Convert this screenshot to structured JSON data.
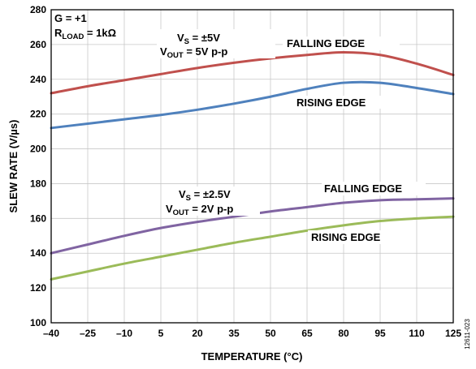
{
  "chart_data": {
    "type": "line",
    "xlabel": "TEMPERATURE (°C)",
    "ylabel": "SLEW RATE (V/µs)",
    "xlim": [
      -40,
      125
    ],
    "ylim": [
      100,
      280
    ],
    "x_ticks": [
      "–40",
      "–25",
      "–10",
      "5",
      "20",
      "35",
      "50",
      "65",
      "80",
      "95",
      "110",
      "125"
    ],
    "x_tick_values": [
      -40,
      -25,
      -10,
      5,
      20,
      35,
      50,
      65,
      80,
      95,
      110,
      125
    ],
    "y_ticks": [
      "100",
      "120",
      "140",
      "160",
      "180",
      "200",
      "220",
      "240",
      "260",
      "280"
    ],
    "y_tick_values": [
      100,
      120,
      140,
      160,
      180,
      200,
      220,
      240,
      260,
      280
    ],
    "grid": true,
    "conditions": {
      "gain": {
        "main": "G = +1",
        "subscript": ""
      },
      "rload": {
        "main": "R",
        "subscript": "LOAD",
        "rest": " = 1kΩ"
      }
    },
    "groups": [
      {
        "vs": {
          "main": "V",
          "subscript": "S",
          "rest": " = ±5V"
        },
        "vout": {
          "main": "V",
          "subscript": "OUT",
          "rest": " = 5V p-p"
        }
      },
      {
        "vs": {
          "main": "V",
          "subscript": "S",
          "rest": " = ±2.5V"
        },
        "vout": {
          "main": "V",
          "subscript": "OUT",
          "rest": " = 2V p-p"
        }
      }
    ],
    "series": [
      {
        "label": "FALLING EDGE",
        "group": 0,
        "color": "#c0504d",
        "x": [
          -40,
          -25,
          -10,
          5,
          20,
          35,
          50,
          65,
          80,
          95,
          110,
          125
        ],
        "y": [
          232,
          236,
          239.5,
          243,
          246.5,
          249.5,
          252,
          254,
          255.5,
          254,
          249,
          242.5
        ]
      },
      {
        "label": "RISING EDGE",
        "group": 0,
        "color": "#4f81bd",
        "x": [
          -40,
          -25,
          -10,
          5,
          20,
          35,
          50,
          65,
          80,
          95,
          110,
          125
        ],
        "y": [
          212,
          214.5,
          217,
          219.5,
          222.5,
          226,
          230,
          234.5,
          238,
          238,
          235,
          231.5
        ]
      },
      {
        "label": "FALLING EDGE",
        "group": 1,
        "color": "#8064a2",
        "x": [
          -40,
          -25,
          -10,
          5,
          20,
          35,
          50,
          65,
          80,
          95,
          110,
          125
        ],
        "y": [
          140,
          145,
          150,
          154.5,
          158,
          161,
          164,
          166.5,
          169,
          170.5,
          171,
          171.5
        ]
      },
      {
        "label": "RISING EDGE",
        "group": 1,
        "color": "#9bbb59",
        "x": [
          -40,
          -25,
          -10,
          5,
          20,
          35,
          50,
          65,
          80,
          95,
          110,
          125
        ],
        "y": [
          125,
          129.5,
          134,
          138,
          142,
          146,
          149.5,
          153,
          156,
          158.5,
          160,
          161
        ]
      }
    ],
    "figure_id": "12611-023"
  }
}
